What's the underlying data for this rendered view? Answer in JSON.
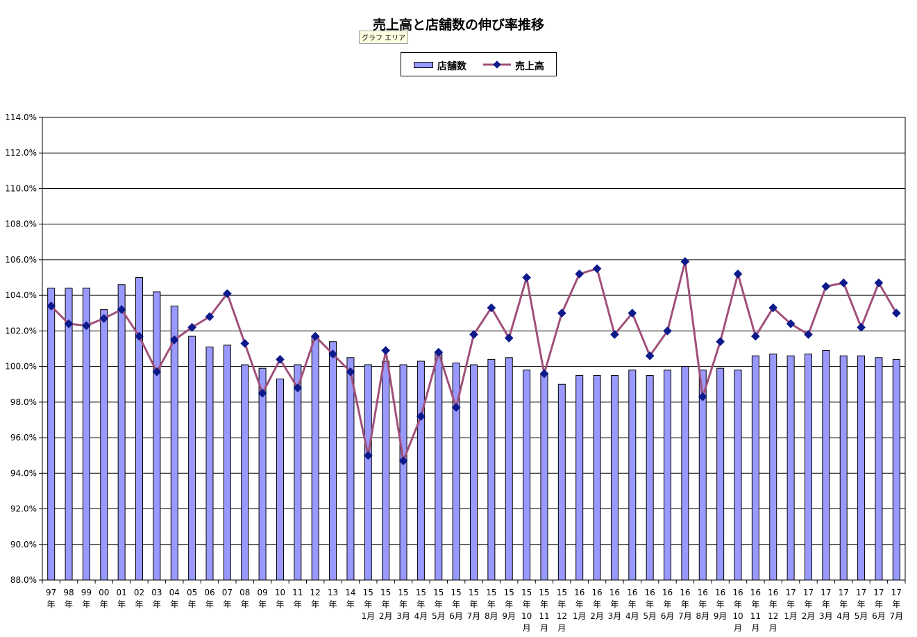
{
  "tooltip_label": "グラフ エリア",
  "chart_data": {
    "type": "bar",
    "title": "売上高と店舗数の伸び率推移",
    "ylim": [
      88.0,
      114.0
    ],
    "yticks": [
      "88.0%",
      "90.0%",
      "92.0%",
      "94.0%",
      "96.0%",
      "98.0%",
      "100.0%",
      "102.0%",
      "104.0%",
      "106.0%",
      "108.0%",
      "110.0%",
      "112.0%",
      "114.0%"
    ],
    "grid": true,
    "legend_position": "top-center",
    "colors": {
      "bar": "#9999ff",
      "line": "#a0507a",
      "marker": "#0c1a8c"
    },
    "categories": [
      [
        "97",
        "年"
      ],
      [
        "98",
        "年"
      ],
      [
        "99",
        "年"
      ],
      [
        "00",
        "年"
      ],
      [
        "01",
        "年"
      ],
      [
        "02",
        "年"
      ],
      [
        "03",
        "年"
      ],
      [
        "04",
        "年"
      ],
      [
        "05",
        "年"
      ],
      [
        "06",
        "年"
      ],
      [
        "07",
        "年"
      ],
      [
        "08",
        "年"
      ],
      [
        "09",
        "年"
      ],
      [
        "10",
        "年"
      ],
      [
        "11",
        "年"
      ],
      [
        "12",
        "年"
      ],
      [
        "13",
        "年"
      ],
      [
        "14",
        "年"
      ],
      [
        "15",
        "年",
        "1月"
      ],
      [
        "15",
        "年",
        "2月"
      ],
      [
        "15",
        "年",
        "3月"
      ],
      [
        "15",
        "年",
        "4月"
      ],
      [
        "15",
        "年",
        "5月"
      ],
      [
        "15",
        "年",
        "6月"
      ],
      [
        "15",
        "年",
        "7月"
      ],
      [
        "15",
        "年",
        "8月"
      ],
      [
        "15",
        "年",
        "9月"
      ],
      [
        "15",
        "年",
        "10",
        "月"
      ],
      [
        "15",
        "年",
        "11",
        "月"
      ],
      [
        "15",
        "年",
        "12",
        "月"
      ],
      [
        "16",
        "年",
        "1月"
      ],
      [
        "16",
        "年",
        "2月"
      ],
      [
        "16",
        "年",
        "3月"
      ],
      [
        "16",
        "年",
        "4月"
      ],
      [
        "16",
        "年",
        "5月"
      ],
      [
        "16",
        "年",
        "6月"
      ],
      [
        "16",
        "年",
        "7月"
      ],
      [
        "16",
        "年",
        "8月"
      ],
      [
        "16",
        "年",
        "9月"
      ],
      [
        "16",
        "年",
        "10",
        "月"
      ],
      [
        "16",
        "年",
        "11",
        "月"
      ],
      [
        "16",
        "年",
        "12",
        "月"
      ],
      [
        "17",
        "年",
        "1月"
      ],
      [
        "17",
        "年",
        "2月"
      ],
      [
        "17",
        "年",
        "3月"
      ],
      [
        "17",
        "年",
        "4月"
      ],
      [
        "17",
        "年",
        "5月"
      ],
      [
        "17",
        "年",
        "6月"
      ],
      [
        "17",
        "年",
        "7月"
      ]
    ],
    "series": [
      {
        "name": "店舗数",
        "type": "bar",
        "values": [
          104.4,
          104.4,
          104.4,
          103.2,
          104.6,
          105.0,
          104.2,
          103.4,
          101.7,
          101.1,
          101.2,
          100.1,
          99.9,
          99.3,
          100.1,
          101.7,
          101.4,
          100.5,
          100.1,
          100.3,
          100.1,
          100.3,
          100.7,
          100.2,
          100.1,
          100.4,
          100.5,
          99.8,
          99.6,
          99.0,
          99.5,
          99.5,
          99.5,
          99.8,
          99.5,
          99.8,
          100.0,
          99.8,
          99.9,
          99.8,
          100.6,
          100.7,
          100.6,
          100.7,
          100.9,
          100.6,
          100.6,
          100.5,
          100.4
        ]
      },
      {
        "name": "売上高",
        "type": "line",
        "values": [
          103.4,
          102.4,
          102.3,
          102.7,
          103.2,
          101.7,
          99.7,
          101.5,
          102.2,
          102.8,
          104.1,
          101.3,
          98.5,
          100.4,
          98.8,
          101.7,
          100.7,
          99.7,
          95.0,
          100.9,
          94.7,
          97.2,
          100.8,
          97.7,
          101.8,
          103.3,
          101.6,
          105.0,
          99.6,
          103.0,
          105.2,
          105.5,
          101.8,
          103.0,
          100.6,
          102.0,
          105.9,
          98.3,
          101.4,
          105.2,
          101.7,
          103.3,
          102.4,
          101.8,
          104.5,
          104.7,
          102.2,
          104.7,
          103.0
        ]
      }
    ]
  }
}
